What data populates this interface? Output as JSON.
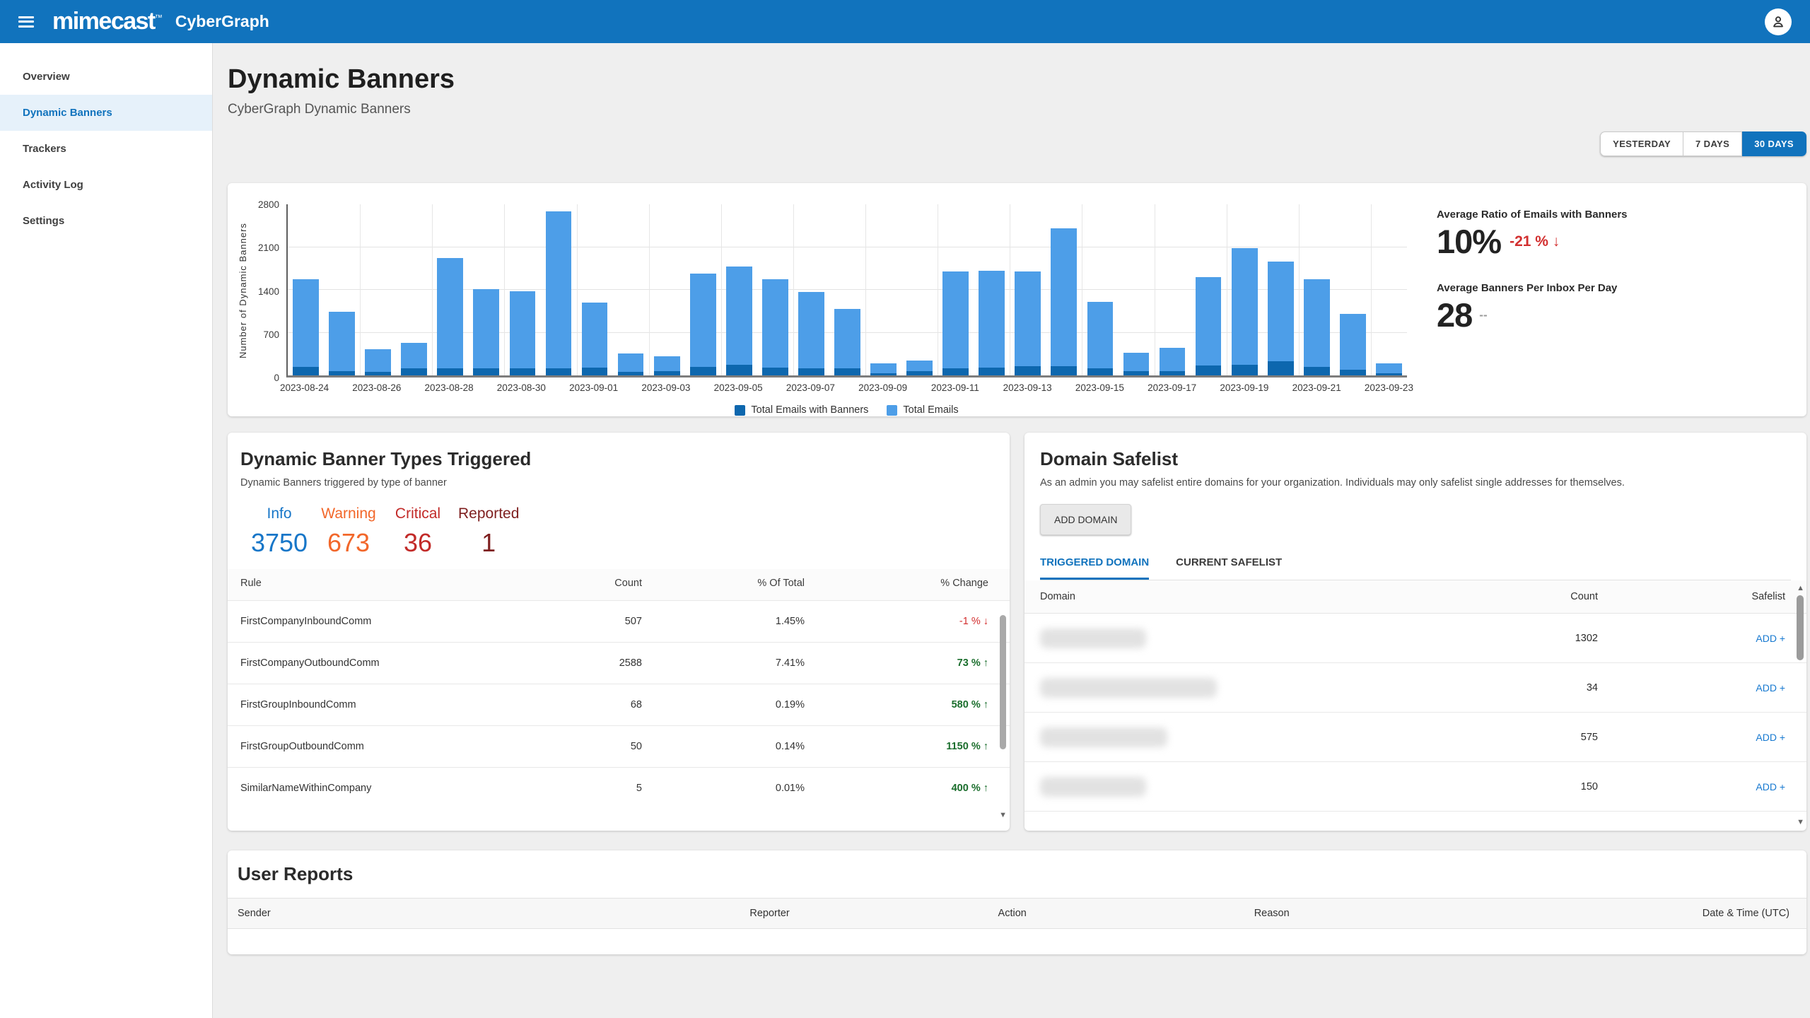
{
  "topbar": {
    "logo": "mimecast",
    "logo_mark": "™",
    "product": "CyberGraph"
  },
  "sidebar": {
    "items": [
      {
        "label": "Overview",
        "active": false
      },
      {
        "label": "Dynamic Banners",
        "active": true
      },
      {
        "label": "Trackers",
        "active": false
      },
      {
        "label": "Activity Log",
        "active": false
      },
      {
        "label": "Settings",
        "active": false
      }
    ]
  },
  "page": {
    "title": "Dynamic Banners",
    "subtitle": "CyberGraph Dynamic Banners"
  },
  "time_range": {
    "options": [
      "YESTERDAY",
      "7 DAYS",
      "30 DAYS"
    ],
    "selected": "30 DAYS"
  },
  "chart_data": {
    "type": "bar",
    "stacked": true,
    "title": "",
    "xlabel": "",
    "ylabel": "Number of Dynamic Banners",
    "ylim": [
      0,
      2800
    ],
    "yticks": [
      0,
      700,
      1400,
      2100,
      2800
    ],
    "grid": true,
    "legend_position": "bottom",
    "x_tick_every": 2,
    "x": [
      "2023-08-24",
      "2023-08-25",
      "2023-08-26",
      "2023-08-27",
      "2023-08-28",
      "2023-08-29",
      "2023-08-30",
      "2023-08-31",
      "2023-09-01",
      "2023-09-02",
      "2023-09-03",
      "2023-09-04",
      "2023-09-05",
      "2023-09-06",
      "2023-09-07",
      "2023-09-08",
      "2023-09-09",
      "2023-09-10",
      "2023-09-11",
      "2023-09-12",
      "2023-09-13",
      "2023-09-14",
      "2023-09-15",
      "2023-09-16",
      "2023-09-17",
      "2023-09-18",
      "2023-09-19",
      "2023-09-20",
      "2023-09-21",
      "2023-09-22",
      "2023-09-23"
    ],
    "series": [
      {
        "name": "Total Emails with Banners",
        "color": "#0d67ae",
        "values": [
          140,
          70,
          60,
          110,
          120,
          110,
          120,
          120,
          130,
          60,
          70,
          140,
          170,
          130,
          120,
          110,
          40,
          70,
          120,
          130,
          150,
          150,
          120,
          70,
          70,
          160,
          170,
          230,
          140,
          90,
          30
        ]
      },
      {
        "name": "Total Emails",
        "color": "#4d9ee8",
        "values": [
          1550,
          1030,
          420,
          530,
          1900,
          1400,
          1360,
          2650,
          1180,
          360,
          310,
          1650,
          1760,
          1560,
          1350,
          1080,
          200,
          240,
          1680,
          1690,
          1680,
          2380,
          1190,
          370,
          450,
          1590,
          2060,
          1840,
          1560,
          990,
          200
        ]
      }
    ]
  },
  "stats": {
    "ratio": {
      "label": "Average Ratio of Emails with Banners",
      "value": "10%",
      "change": "-21 % ↓"
    },
    "per_inbox": {
      "label": "Average Banners Per Inbox Per Day",
      "value": "28",
      "change": "--"
    }
  },
  "banner_types": {
    "title": "Dynamic Banner Types Triggered",
    "subtitle": "Dynamic Banners triggered by type of banner",
    "counters": [
      {
        "label": "Info",
        "value": "3750",
        "color": "#1776c8"
      },
      {
        "label": "Warning",
        "value": "673",
        "color": "#f2672a"
      },
      {
        "label": "Critical",
        "value": "36",
        "color": "#c22a28"
      },
      {
        "label": "Reported",
        "value": "1",
        "color": "#7e1f1f"
      }
    ],
    "table": {
      "headers": [
        "Rule",
        "Count",
        "% Of Total",
        "% Change"
      ],
      "rows": [
        {
          "rule": "FirstCompanyInboundComm",
          "count": "507",
          "pct_of_total": "1.45%",
          "change": "-1 %",
          "dir": "down"
        },
        {
          "rule": "FirstCompanyOutboundComm",
          "count": "2588",
          "pct_of_total": "7.41%",
          "change": "73 %",
          "dir": "up"
        },
        {
          "rule": "FirstGroupInboundComm",
          "count": "68",
          "pct_of_total": "0.19%",
          "change": "580 %",
          "dir": "up"
        },
        {
          "rule": "FirstGroupOutboundComm",
          "count": "50",
          "pct_of_total": "0.14%",
          "change": "1150 %",
          "dir": "up"
        },
        {
          "rule": "SimilarNameWithinCompany",
          "count": "5",
          "pct_of_total": "0.01%",
          "change": "400 %",
          "dir": "up"
        }
      ]
    }
  },
  "domain_safelist": {
    "title": "Domain Safelist",
    "subtitle": "As an admin you may safelist entire domains for your organization. Individuals may only safelist single addresses for themselves.",
    "add_button": "ADD DOMAIN",
    "tabs": [
      {
        "label": "TRIGGERED DOMAIN",
        "active": true
      },
      {
        "label": "CURRENT SAFELIST",
        "active": false
      }
    ],
    "table": {
      "headers": [
        "Domain",
        "Count",
        "Safelist"
      ],
      "rows": [
        {
          "domain_redacted": true,
          "count": "1302",
          "action": "ADD +"
        },
        {
          "domain_redacted": true,
          "count": "34",
          "action": "ADD +"
        },
        {
          "domain_redacted": true,
          "count": "575",
          "action": "ADD +"
        },
        {
          "domain_redacted": true,
          "count": "150",
          "action": "ADD +"
        }
      ]
    }
  },
  "user_reports": {
    "title": "User Reports",
    "headers": [
      "Sender",
      "Reporter",
      "Action",
      "Reason",
      "Date & Time (UTC)"
    ]
  },
  "colors": {
    "topbar": "#1173bd",
    "accent": "#1173bd",
    "bar_banners": "#0d67ae",
    "bar_emails": "#4d9ee8",
    "negative": "#d32f2f",
    "positive": "#1b6e2d"
  }
}
